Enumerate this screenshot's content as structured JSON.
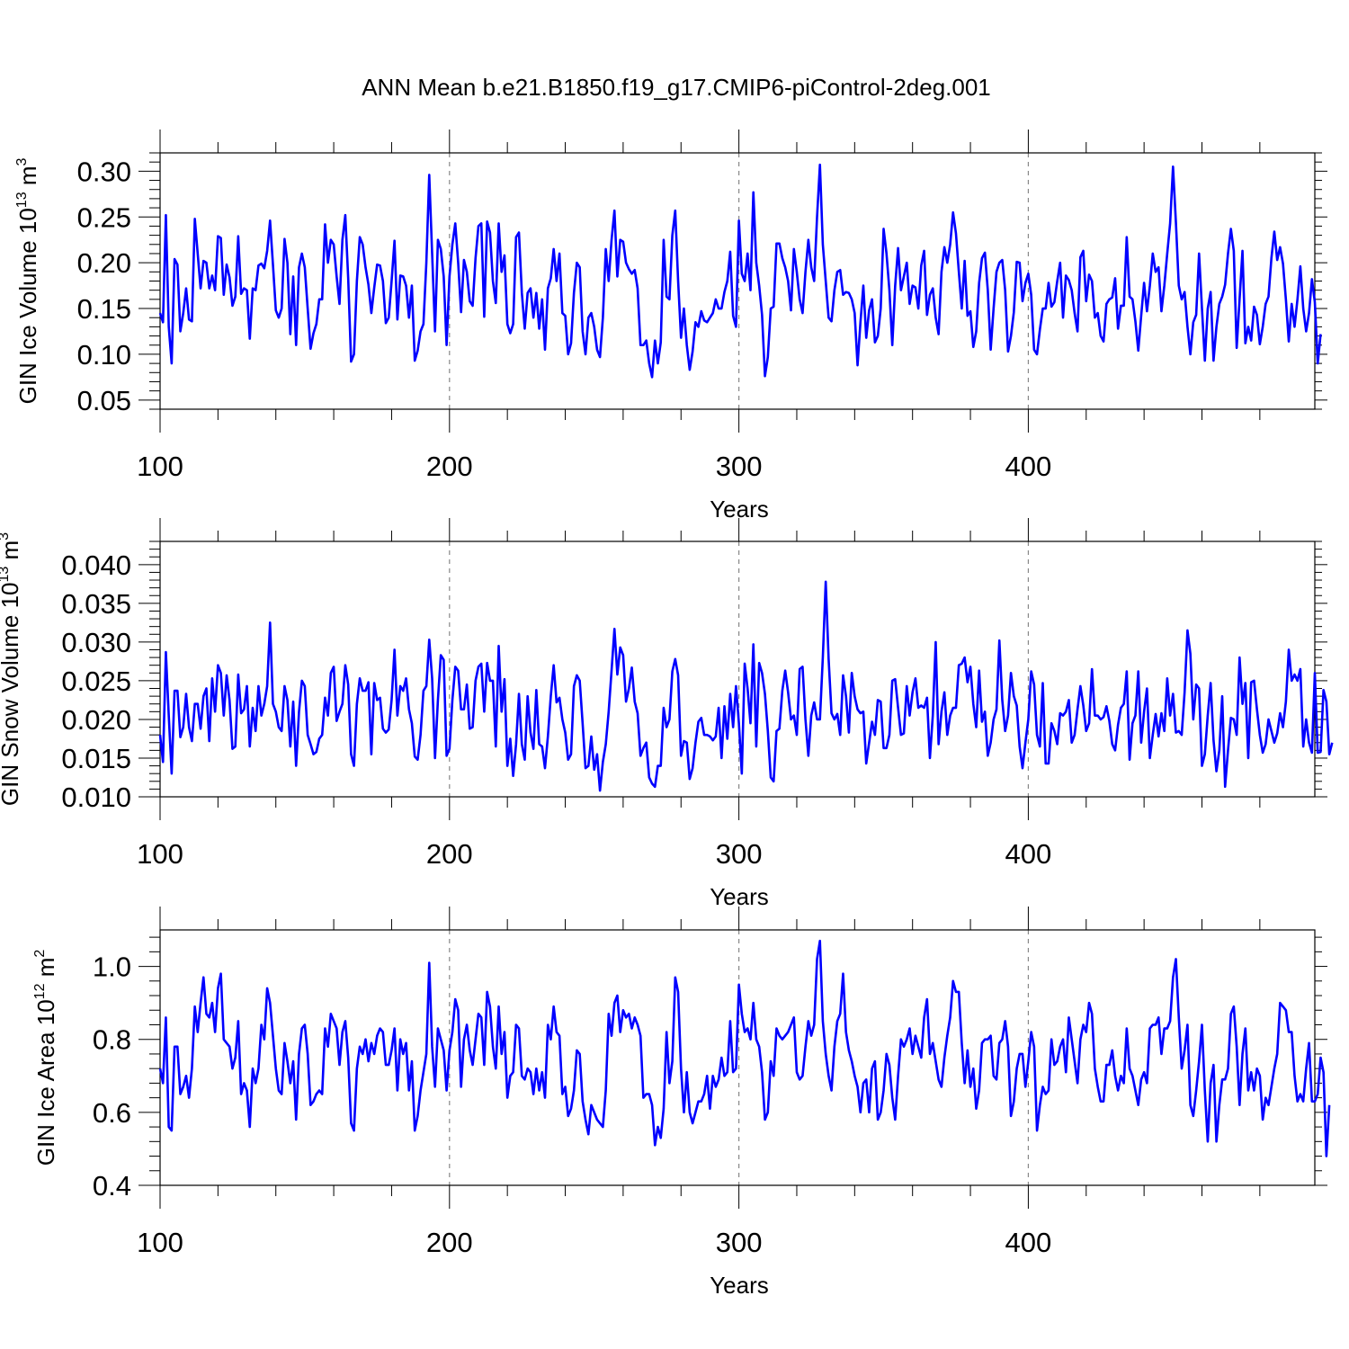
{
  "title": "ANN Mean b.e21.B1850.f19_g17.CMIP6-piControl-2deg.001",
  "series_color": "#0000ff",
  "chart_data": [
    {
      "type": "line",
      "ylabel_main": "GIN Ice Volume 10",
      "ylabel_exp": "13",
      "ylabel_unit": " m",
      "ylabel_unit_exp": "3",
      "xlabel": "Years",
      "xlim": [
        100,
        499
      ],
      "ylim": [
        0.04,
        0.32
      ],
      "xticks": [
        "100",
        "200",
        "300",
        "400"
      ],
      "yticks": [
        "0.05",
        "0.10",
        "0.15",
        "0.20",
        "0.25",
        "0.30"
      ],
      "grid_x": [
        200,
        300,
        400
      ],
      "x_start": 100,
      "values": [
        0.145,
        0.135,
        0.252,
        0.13,
        0.09,
        0.204,
        0.198,
        0.125,
        0.145,
        0.172,
        0.138,
        0.136,
        0.248,
        0.21,
        0.172,
        0.202,
        0.2,
        0.172,
        0.186,
        0.17,
        0.229,
        0.227,
        0.165,
        0.198,
        0.184,
        0.153,
        0.163,
        0.229,
        0.166,
        0.172,
        0.17,
        0.117,
        0.172,
        0.17,
        0.197,
        0.199,
        0.194,
        0.213,
        0.246,
        0.198,
        0.148,
        0.14,
        0.15,
        0.226,
        0.2,
        0.122,
        0.185,
        0.11,
        0.195,
        0.21,
        0.195,
        0.15,
        0.106,
        0.123,
        0.133,
        0.16,
        0.16,
        0.242,
        0.2,
        0.225,
        0.22,
        0.185,
        0.155,
        0.225,
        0.252,
        0.183,
        0.092,
        0.1,
        0.18,
        0.228,
        0.22,
        0.195,
        0.176,
        0.145,
        0.173,
        0.198,
        0.197,
        0.18,
        0.134,
        0.14,
        0.18,
        0.224,
        0.138,
        0.186,
        0.185,
        0.175,
        0.14,
        0.175,
        0.093,
        0.104,
        0.125,
        0.133,
        0.2,
        0.296,
        0.21,
        0.125,
        0.225,
        0.215,
        0.185,
        0.11,
        0.185,
        0.22,
        0.243,
        0.2,
        0.146,
        0.203,
        0.19,
        0.158,
        0.153,
        0.205,
        0.24,
        0.243,
        0.141,
        0.245,
        0.233,
        0.18,
        0.156,
        0.243,
        0.19,
        0.208,
        0.133,
        0.123,
        0.133,
        0.228,
        0.233,
        0.167,
        0.128,
        0.167,
        0.172,
        0.14,
        0.167,
        0.128,
        0.16,
        0.105,
        0.172,
        0.183,
        0.215,
        0.18,
        0.21,
        0.145,
        0.142,
        0.1,
        0.112,
        0.167,
        0.2,
        0.195,
        0.125,
        0.1,
        0.14,
        0.145,
        0.13,
        0.105,
        0.097,
        0.14,
        0.215,
        0.18,
        0.225,
        0.257,
        0.185,
        0.225,
        0.223,
        0.2,
        0.193,
        0.188,
        0.192,
        0.172,
        0.11,
        0.11,
        0.115,
        0.09,
        0.075,
        0.115,
        0.09,
        0.113,
        0.225,
        0.163,
        0.16,
        0.23,
        0.257,
        0.18,
        0.118,
        0.15,
        0.11,
        0.083,
        0.103,
        0.135,
        0.13,
        0.147,
        0.137,
        0.135,
        0.14,
        0.145,
        0.16,
        0.15,
        0.15,
        0.168,
        0.18,
        0.212,
        0.142,
        0.13,
        0.246,
        0.188,
        0.18,
        0.21,
        0.17,
        0.277,
        0.2,
        0.175,
        0.143,
        0.076,
        0.097,
        0.15,
        0.152,
        0.221,
        0.221,
        0.205,
        0.195,
        0.18,
        0.148,
        0.215,
        0.19,
        0.16,
        0.145,
        0.19,
        0.225,
        0.195,
        0.18,
        0.25,
        0.307,
        0.22,
        0.18,
        0.14,
        0.136,
        0.17,
        0.19,
        0.192,
        0.165,
        0.168,
        0.167,
        0.16,
        0.145,
        0.088,
        0.135,
        0.175,
        0.118,
        0.148,
        0.16,
        0.113,
        0.12,
        0.15,
        0.237,
        0.21,
        0.17,
        0.11,
        0.175,
        0.216,
        0.17,
        0.185,
        0.2,
        0.155,
        0.175,
        0.173,
        0.15,
        0.197,
        0.213,
        0.143,
        0.165,
        0.172,
        0.14,
        0.122,
        0.19,
        0.217,
        0.2,
        0.22,
        0.255,
        0.232,
        0.19,
        0.15,
        0.202,
        0.142,
        0.147,
        0.108,
        0.125,
        0.178,
        0.205,
        0.211,
        0.17,
        0.105,
        0.15,
        0.19,
        0.2,
        0.203,
        0.17,
        0.103,
        0.12,
        0.146,
        0.201,
        0.2,
        0.158,
        0.178,
        0.188,
        0.165,
        0.105,
        0.1,
        0.127,
        0.15,
        0.15,
        0.178,
        0.152,
        0.157,
        0.18,
        0.2,
        0.14,
        0.186,
        0.181,
        0.17,
        0.145,
        0.125,
        0.206,
        0.213,
        0.158,
        0.187,
        0.18,
        0.14,
        0.145,
        0.12,
        0.114,
        0.155,
        0.16,
        0.162,
        0.183,
        0.128,
        0.153,
        0.153,
        0.228,
        0.163,
        0.16,
        0.136,
        0.104,
        0.142,
        0.178,
        0.147,
        0.175,
        0.21,
        0.19,
        0.195,
        0.147,
        0.175,
        0.21,
        0.243,
        0.305,
        0.244,
        0.175,
        0.16,
        0.168,
        0.13,
        0.1,
        0.135,
        0.143,
        0.21,
        0.15,
        0.093,
        0.15,
        0.168,
        0.093,
        0.13,
        0.155,
        0.163,
        0.176,
        0.21,
        0.237,
        0.213,
        0.107,
        0.16,
        0.213,
        0.112,
        0.13,
        0.115,
        0.152,
        0.143,
        0.111,
        0.13,
        0.155,
        0.163,
        0.205,
        0.234,
        0.203,
        0.217,
        0.199,
        0.16,
        0.114,
        0.155,
        0.13,
        0.16,
        0.196,
        0.15,
        0.125,
        0.145,
        0.182,
        0.157,
        0.09,
        0.122
      ]
    },
    {
      "type": "line",
      "ylabel_main": "GIN Snow Volume 10",
      "ylabel_exp": "13",
      "ylabel_unit": " m",
      "ylabel_unit_exp": "3",
      "xlabel": "Years",
      "xlim": [
        100,
        499
      ],
      "ylim": [
        0.01,
        0.043
      ],
      "xticks": [
        "100",
        "200",
        "300",
        "400"
      ],
      "yticks": [
        "0.010",
        "0.015",
        "0.020",
        "0.025",
        "0.030",
        "0.035",
        "0.040"
      ],
      "grid_x": [
        200,
        300,
        400
      ],
      "x_start": 100,
      "values": [
        0.018,
        0.0145,
        0.0287,
        0.0205,
        0.013,
        0.0237,
        0.0237,
        0.0177,
        0.019,
        0.0233,
        0.019,
        0.0172,
        0.022,
        0.022,
        0.0188,
        0.023,
        0.024,
        0.0172,
        0.0253,
        0.021,
        0.027,
        0.026,
        0.0205,
        0.0257,
        0.0225,
        0.0162,
        0.0165,
        0.0258,
        0.0208,
        0.0213,
        0.0243,
        0.0165,
        0.0215,
        0.0185,
        0.0243,
        0.0205,
        0.022,
        0.0243,
        0.0325,
        0.022,
        0.021,
        0.019,
        0.0185,
        0.0243,
        0.0225,
        0.0165,
        0.0223,
        0.014,
        0.021,
        0.025,
        0.0243,
        0.018,
        0.0168,
        0.0155,
        0.0158,
        0.0175,
        0.018,
        0.0228,
        0.0205,
        0.026,
        0.0268,
        0.0198,
        0.021,
        0.022,
        0.027,
        0.0245,
        0.0155,
        0.014,
        0.022,
        0.0253,
        0.0237,
        0.0237,
        0.0248,
        0.0155,
        0.0247,
        0.0225,
        0.0228,
        0.0188,
        0.0183,
        0.0187,
        0.0225,
        0.029,
        0.0205,
        0.0243,
        0.0237,
        0.0253,
        0.0213,
        0.0195,
        0.0152,
        0.0148,
        0.018,
        0.0237,
        0.0243,
        0.0303,
        0.0253,
        0.015,
        0.0225,
        0.0283,
        0.0277,
        0.0153,
        0.0162,
        0.0225,
        0.0268,
        0.0263,
        0.0213,
        0.0213,
        0.0245,
        0.0188,
        0.019,
        0.025,
        0.0268,
        0.0272,
        0.021,
        0.0273,
        0.025,
        0.025,
        0.0165,
        0.0295,
        0.021,
        0.0252,
        0.014,
        0.0175,
        0.0127,
        0.0168,
        0.0233,
        0.0168,
        0.0148,
        0.023,
        0.0183,
        0.0162,
        0.0238,
        0.0168,
        0.0165,
        0.0137,
        0.0178,
        0.023,
        0.027,
        0.0222,
        0.0228,
        0.02,
        0.0183,
        0.0148,
        0.0155,
        0.0243,
        0.0257,
        0.025,
        0.0195,
        0.0137,
        0.014,
        0.0178,
        0.0135,
        0.0155,
        0.0108,
        0.0145,
        0.0168,
        0.021,
        0.0263,
        0.0317,
        0.0258,
        0.0293,
        0.0283,
        0.0223,
        0.024,
        0.0267,
        0.0223,
        0.0208,
        0.0153,
        0.0163,
        0.017,
        0.0125,
        0.0117,
        0.0113,
        0.014,
        0.014,
        0.0215,
        0.019,
        0.02,
        0.0262,
        0.0278,
        0.0257,
        0.0153,
        0.0172,
        0.017,
        0.0123,
        0.0137,
        0.017,
        0.0197,
        0.0202,
        0.018,
        0.018,
        0.0178,
        0.0173,
        0.0178,
        0.0215,
        0.015,
        0.0217,
        0.0175,
        0.0233,
        0.019,
        0.0243,
        0.0195,
        0.013,
        0.0272,
        0.024,
        0.0195,
        0.0297,
        0.0165,
        0.0273,
        0.026,
        0.0233,
        0.0185,
        0.0125,
        0.012,
        0.0185,
        0.0188,
        0.0237,
        0.0263,
        0.0235,
        0.02,
        0.0205,
        0.018,
        0.0265,
        0.0268,
        0.02,
        0.0153,
        0.0205,
        0.0222,
        0.02,
        0.02,
        0.028,
        0.0378,
        0.0278,
        0.0208,
        0.02,
        0.0207,
        0.018,
        0.0257,
        0.023,
        0.0183,
        0.026,
        0.023,
        0.0213,
        0.0208,
        0.021,
        0.0143,
        0.017,
        0.0197,
        0.018,
        0.0225,
        0.0223,
        0.0163,
        0.0163,
        0.018,
        0.025,
        0.0252,
        0.0215,
        0.018,
        0.0182,
        0.0243,
        0.0205,
        0.0235,
        0.0253,
        0.0215,
        0.0218,
        0.0215,
        0.0228,
        0.015,
        0.0205,
        0.03,
        0.0168,
        0.021,
        0.0235,
        0.018,
        0.0205,
        0.0215,
        0.0215,
        0.027,
        0.0272,
        0.028,
        0.0248,
        0.0268,
        0.022,
        0.019,
        0.0263,
        0.0197,
        0.021,
        0.0153,
        0.017,
        0.02,
        0.0213,
        0.0302,
        0.0225,
        0.0185,
        0.0205,
        0.026,
        0.023,
        0.0218,
        0.0165,
        0.0137,
        0.017,
        0.02,
        0.0262,
        0.0245,
        0.018,
        0.0165,
        0.0247,
        0.0143,
        0.0143,
        0.0195,
        0.0185,
        0.0168,
        0.0208,
        0.0205,
        0.021,
        0.0225,
        0.017,
        0.018,
        0.0213,
        0.0243,
        0.0218,
        0.0185,
        0.0195,
        0.0265,
        0.0205,
        0.0205,
        0.02,
        0.0203,
        0.0217,
        0.0198,
        0.0168,
        0.016,
        0.0193,
        0.0215,
        0.022,
        0.0262,
        0.0148,
        0.0195,
        0.0205,
        0.0262,
        0.017,
        0.021,
        0.024,
        0.015,
        0.018,
        0.0207,
        0.0178,
        0.0208,
        0.0185,
        0.0253,
        0.0205,
        0.0233,
        0.0183,
        0.0185,
        0.018,
        0.0235,
        0.0315,
        0.0285,
        0.02,
        0.0245,
        0.024,
        0.014,
        0.0155,
        0.0205,
        0.0247,
        0.0173,
        0.0133,
        0.016,
        0.023,
        0.0113,
        0.016,
        0.0202,
        0.02,
        0.018,
        0.028,
        0.022,
        0.0247,
        0.015,
        0.0248,
        0.025,
        0.0213,
        0.018,
        0.0157,
        0.0168,
        0.02,
        0.0185,
        0.017,
        0.0182,
        0.0208,
        0.019,
        0.0223,
        0.029,
        0.025,
        0.0258,
        0.025,
        0.0265,
        0.0165,
        0.02,
        0.017,
        0.0157,
        0.026,
        0.0157,
        0.0158,
        0.0238,
        0.0223,
        0.0155,
        0.017
      ]
    },
    {
      "type": "line",
      "ylabel_main": "GIN Ice Area 10",
      "ylabel_exp": "12",
      "ylabel_unit": " m",
      "ylabel_unit_exp": "2",
      "xlabel": "Years",
      "xlim": [
        100,
        499
      ],
      "ylim": [
        0.4,
        1.1
      ],
      "xticks": [
        "100",
        "200",
        "300",
        "400"
      ],
      "yticks": [
        "0.4",
        "0.6",
        "0.8",
        "1.0"
      ],
      "grid_x": [
        200,
        300,
        400
      ],
      "x_start": 100,
      "values": [
        0.72,
        0.68,
        0.86,
        0.56,
        0.55,
        0.78,
        0.78,
        0.65,
        0.67,
        0.7,
        0.64,
        0.72,
        0.89,
        0.82,
        0.9,
        0.97,
        0.87,
        0.86,
        0.9,
        0.82,
        0.94,
        0.98,
        0.8,
        0.79,
        0.78,
        0.72,
        0.75,
        0.85,
        0.65,
        0.68,
        0.66,
        0.56,
        0.72,
        0.68,
        0.72,
        0.84,
        0.8,
        0.94,
        0.9,
        0.81,
        0.72,
        0.66,
        0.65,
        0.79,
        0.74,
        0.68,
        0.74,
        0.58,
        0.76,
        0.83,
        0.84,
        0.76,
        0.62,
        0.63,
        0.65,
        0.66,
        0.65,
        0.83,
        0.78,
        0.87,
        0.85,
        0.83,
        0.73,
        0.82,
        0.85,
        0.75,
        0.57,
        0.55,
        0.72,
        0.78,
        0.76,
        0.8,
        0.74,
        0.79,
        0.76,
        0.81,
        0.83,
        0.82,
        0.73,
        0.73,
        0.77,
        0.83,
        0.66,
        0.8,
        0.76,
        0.79,
        0.66,
        0.74,
        0.55,
        0.59,
        0.66,
        0.71,
        0.76,
        1.01,
        0.78,
        0.67,
        0.83,
        0.8,
        0.77,
        0.66,
        0.77,
        0.82,
        0.91,
        0.88,
        0.67,
        0.8,
        0.84,
        0.77,
        0.73,
        0.8,
        0.87,
        0.86,
        0.73,
        0.93,
        0.89,
        0.78,
        0.72,
        0.89,
        0.76,
        0.82,
        0.64,
        0.7,
        0.71,
        0.84,
        0.83,
        0.7,
        0.69,
        0.72,
        0.71,
        0.65,
        0.72,
        0.66,
        0.71,
        0.64,
        0.84,
        0.8,
        0.89,
        0.82,
        0.81,
        0.65,
        0.67,
        0.59,
        0.61,
        0.66,
        0.77,
        0.76,
        0.63,
        0.58,
        0.54,
        0.62,
        0.6,
        0.58,
        0.57,
        0.56,
        0.66,
        0.87,
        0.81,
        0.9,
        0.92,
        0.82,
        0.88,
        0.86,
        0.87,
        0.83,
        0.86,
        0.84,
        0.81,
        0.64,
        0.65,
        0.65,
        0.62,
        0.51,
        0.56,
        0.53,
        0.61,
        0.82,
        0.68,
        0.74,
        0.97,
        0.93,
        0.72,
        0.6,
        0.71,
        0.6,
        0.57,
        0.6,
        0.63,
        0.63,
        0.65,
        0.7,
        0.61,
        0.7,
        0.67,
        0.69,
        0.75,
        0.7,
        0.71,
        0.85,
        0.71,
        0.72,
        0.95,
        0.87,
        0.82,
        0.83,
        0.8,
        0.9,
        0.8,
        0.78,
        0.71,
        0.58,
        0.6,
        0.74,
        0.7,
        0.83,
        0.81,
        0.8,
        0.81,
        0.82,
        0.84,
        0.86,
        0.71,
        0.69,
        0.7,
        0.78,
        0.85,
        0.81,
        0.84,
        1.02,
        1.07,
        0.85,
        0.76,
        0.7,
        0.66,
        0.78,
        0.85,
        0.87,
        0.98,
        0.82,
        0.77,
        0.74,
        0.7,
        0.67,
        0.6,
        0.68,
        0.69,
        0.6,
        0.72,
        0.74,
        0.58,
        0.6,
        0.66,
        0.76,
        0.73,
        0.64,
        0.58,
        0.7,
        0.8,
        0.78,
        0.8,
        0.83,
        0.76,
        0.81,
        0.78,
        0.75,
        0.86,
        0.91,
        0.76,
        0.79,
        0.74,
        0.69,
        0.67,
        0.75,
        0.81,
        0.86,
        0.96,
        0.93,
        0.93,
        0.79,
        0.68,
        0.77,
        0.67,
        0.72,
        0.61,
        0.66,
        0.79,
        0.8,
        0.8,
        0.81,
        0.7,
        0.69,
        0.79,
        0.8,
        0.85,
        0.78,
        0.59,
        0.63,
        0.72,
        0.76,
        0.76,
        0.67,
        0.74,
        0.82,
        0.78,
        0.55,
        0.62,
        0.67,
        0.65,
        0.66,
        0.8,
        0.73,
        0.74,
        0.78,
        0.8,
        0.71,
        0.86,
        0.8,
        0.74,
        0.68,
        0.8,
        0.84,
        0.82,
        0.9,
        0.87,
        0.72,
        0.67,
        0.63,
        0.63,
        0.73,
        0.73,
        0.77,
        0.7,
        0.66,
        0.7,
        0.68,
        0.83,
        0.72,
        0.7,
        0.66,
        0.62,
        0.69,
        0.71,
        0.68,
        0.83,
        0.84,
        0.84,
        0.86,
        0.76,
        0.83,
        0.83,
        0.85,
        0.97,
        1.02,
        0.86,
        0.72,
        0.77,
        0.84,
        0.62,
        0.59,
        0.66,
        0.74,
        0.84,
        0.66,
        0.52,
        0.68,
        0.73,
        0.52,
        0.62,
        0.69,
        0.69,
        0.72,
        0.87,
        0.89,
        0.78,
        0.62,
        0.76,
        0.83,
        0.66,
        0.71,
        0.66,
        0.72,
        0.7,
        0.58,
        0.64,
        0.62,
        0.67,
        0.72,
        0.76,
        0.9,
        0.89,
        0.88,
        0.82,
        0.82,
        0.7,
        0.63,
        0.65,
        0.63,
        0.72,
        0.79,
        0.63,
        0.63,
        0.65,
        0.75,
        0.71,
        0.48,
        0.62
      ]
    }
  ]
}
